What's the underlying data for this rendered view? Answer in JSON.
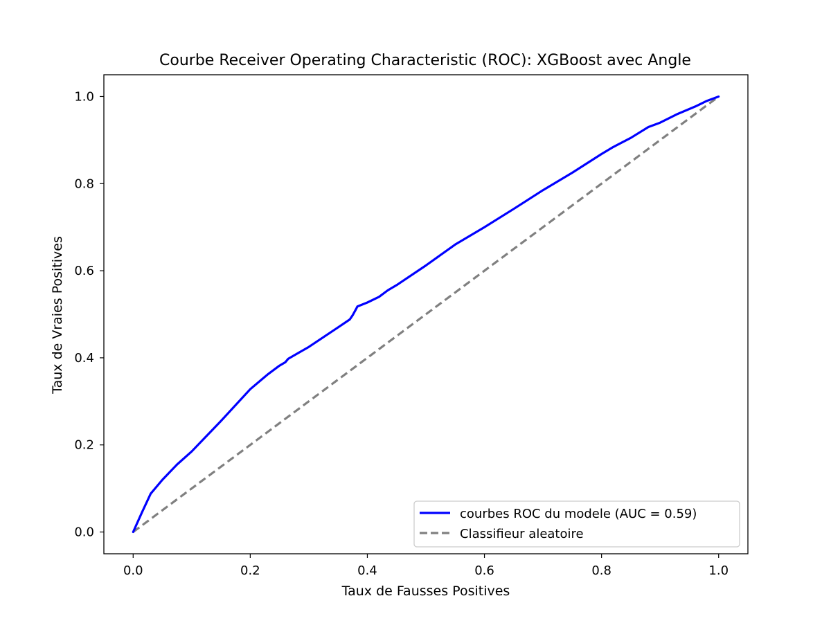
{
  "chart_data": {
    "type": "line",
    "title": "Courbe Receiver Operating Characteristic (ROC): XGBoost avec Angle",
    "xlabel": "Taux de Fausses Positives",
    "ylabel": "Taux de Vraies Positives",
    "xlim": [
      -0.05,
      1.05
    ],
    "ylim": [
      -0.05,
      1.05
    ],
    "xticks": [
      0.0,
      0.2,
      0.4,
      0.6,
      0.8,
      1.0
    ],
    "yticks": [
      0.0,
      0.2,
      0.4,
      0.6,
      0.8,
      1.0
    ],
    "xtick_labels": [
      "0.0",
      "0.2",
      "0.4",
      "0.6",
      "0.8",
      "1.0"
    ],
    "ytick_labels": [
      "0.0",
      "0.2",
      "0.4",
      "0.6",
      "0.8",
      "1.0"
    ],
    "grid": false,
    "legend_position": "lower-right",
    "series": [
      {
        "name": "courbes ROC du modele (AUC = 0.59)",
        "color": "#0000ff",
        "style": "solid",
        "points": [
          [
            0.0,
            0.0
          ],
          [
            0.015,
            0.045
          ],
          [
            0.03,
            0.088
          ],
          [
            0.05,
            0.12
          ],
          [
            0.075,
            0.155
          ],
          [
            0.1,
            0.185
          ],
          [
            0.15,
            0.255
          ],
          [
            0.2,
            0.328
          ],
          [
            0.23,
            0.362
          ],
          [
            0.25,
            0.382
          ],
          [
            0.26,
            0.39
          ],
          [
            0.265,
            0.398
          ],
          [
            0.3,
            0.425
          ],
          [
            0.35,
            0.47
          ],
          [
            0.37,
            0.488
          ],
          [
            0.375,
            0.498
          ],
          [
            0.38,
            0.51
          ],
          [
            0.383,
            0.518
          ],
          [
            0.4,
            0.527
          ],
          [
            0.42,
            0.54
          ],
          [
            0.435,
            0.555
          ],
          [
            0.45,
            0.567
          ],
          [
            0.5,
            0.612
          ],
          [
            0.55,
            0.66
          ],
          [
            0.6,
            0.7
          ],
          [
            0.65,
            0.742
          ],
          [
            0.7,
            0.785
          ],
          [
            0.75,
            0.825
          ],
          [
            0.8,
            0.868
          ],
          [
            0.82,
            0.884
          ],
          [
            0.85,
            0.905
          ],
          [
            0.88,
            0.93
          ],
          [
            0.9,
            0.94
          ],
          [
            0.93,
            0.96
          ],
          [
            0.96,
            0.977
          ],
          [
            0.98,
            0.99
          ],
          [
            1.0,
            1.0
          ]
        ]
      },
      {
        "name": "Classifieur aleatoire",
        "color": "#808080",
        "style": "dashed",
        "points": [
          [
            0.0,
            0.0
          ],
          [
            1.0,
            1.0
          ]
        ]
      }
    ]
  }
}
